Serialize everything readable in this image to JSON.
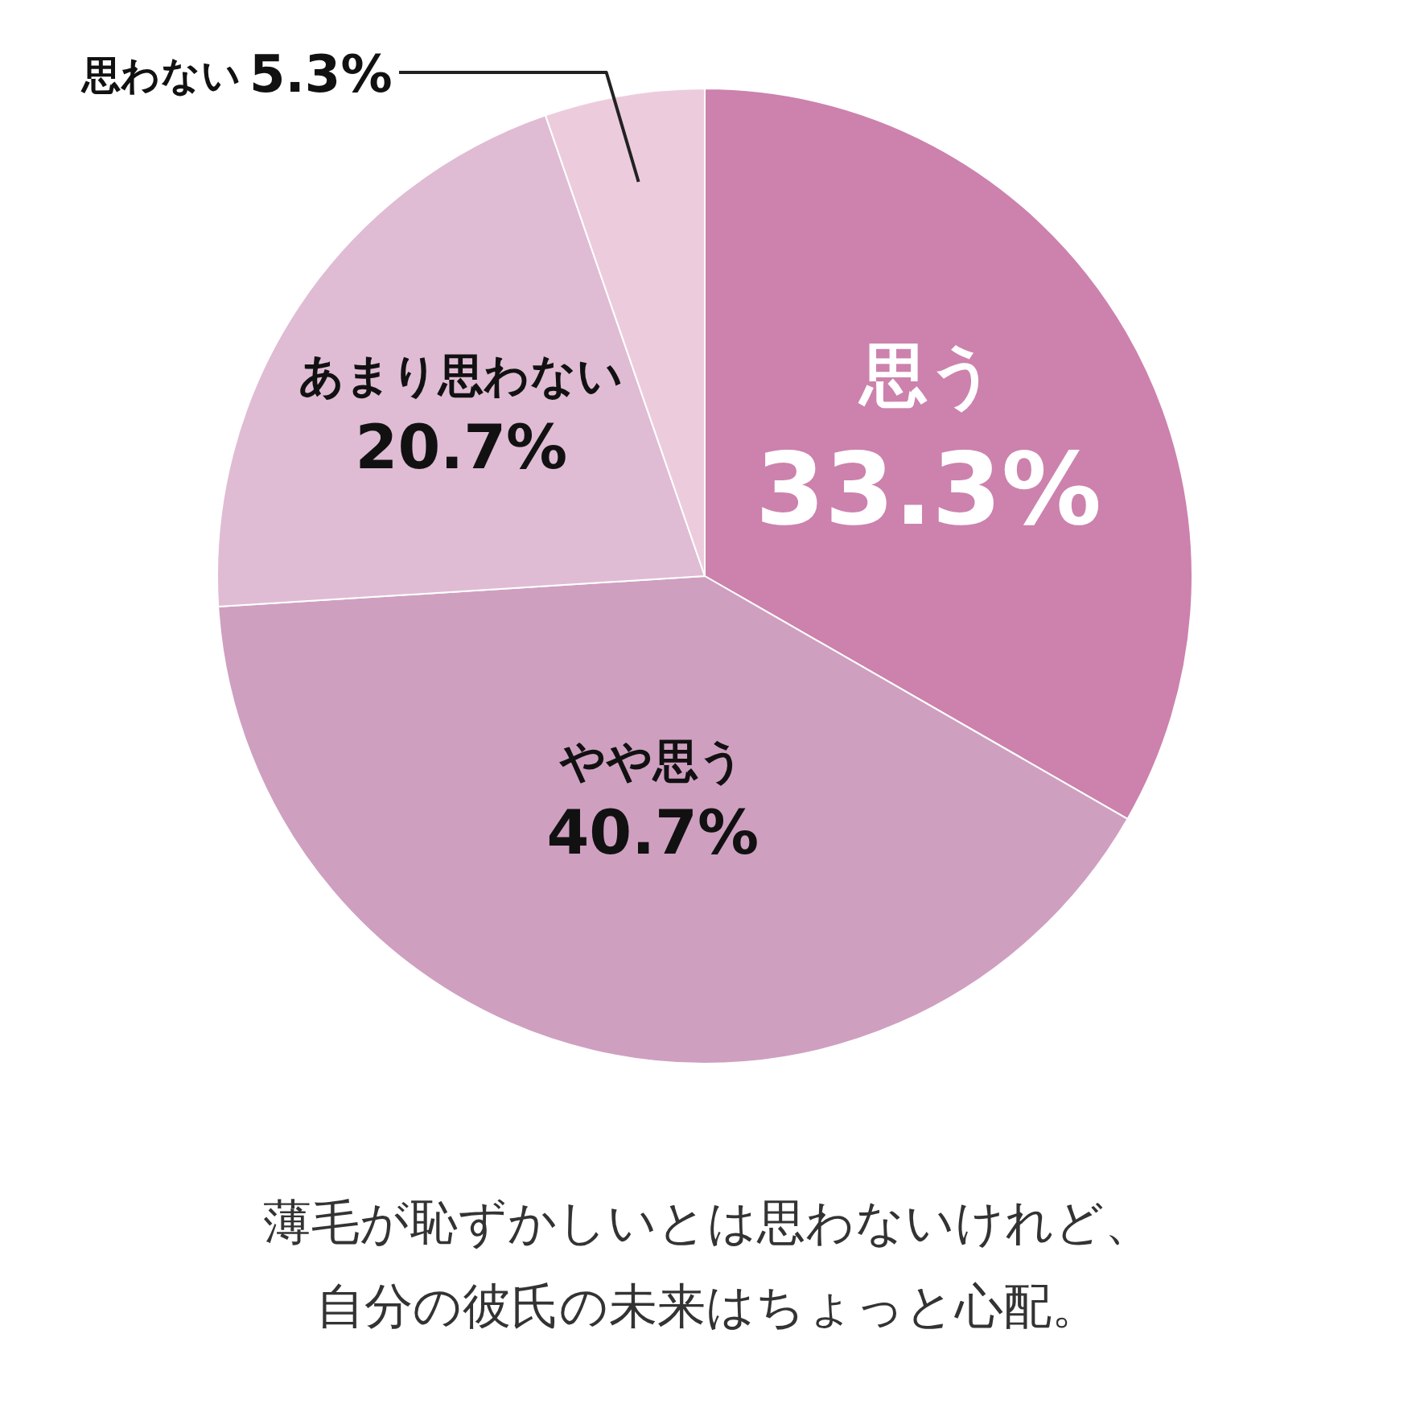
{
  "chart_data": {
    "type": "pie",
    "categories": [
      "思う",
      "やや思う",
      "あまり思わない",
      "思わない"
    ],
    "values": [
      33.3,
      40.7,
      20.7,
      5.3
    ],
    "value_labels": [
      "33.3%",
      "40.7%",
      "20.7%",
      "5.3%"
    ],
    "colors": [
      "#cc82ad",
      "#cf9fc0",
      "#dfbcd4",
      "#ecccdc"
    ],
    "annotations": [
      "薄毛が恥ずかしいとは思わないけれど、",
      "自分の彼氏の未来はちょっと心配。"
    ]
  }
}
